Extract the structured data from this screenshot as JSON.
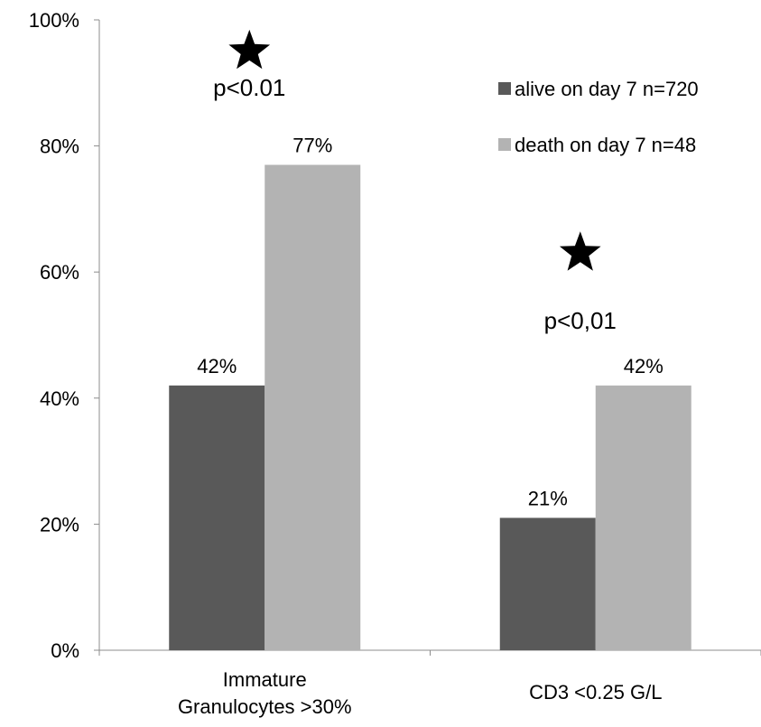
{
  "chart_data": {
    "type": "bar",
    "title": "",
    "xlabel": "",
    "ylabel": "",
    "ylim": [
      0,
      100
    ],
    "y_ticks": [
      0,
      20,
      40,
      60,
      80,
      100
    ],
    "y_tick_labels": [
      "0%",
      "20%",
      "40%",
      "60%",
      "80%",
      "100%"
    ],
    "grid": false,
    "legend_position": "top-right",
    "categories": [
      [
        "Immature",
        "Granulocytes >30%"
      ],
      [
        "CD3 <0.25 G/L"
      ]
    ],
    "series": [
      {
        "name": "alive on day 7 n=720",
        "color": "#595959",
        "values": [
          42,
          21
        ],
        "labels": [
          "42%",
          "21%"
        ]
      },
      {
        "name": "death on day 7 n=48",
        "color": "#b3b3b3",
        "values": [
          77,
          42
        ],
        "labels": [
          "77%",
          "42%"
        ]
      }
    ],
    "annotations": [
      {
        "category_index": 0,
        "star_value": 95,
        "text": "p<0.01",
        "text_value": 88
      },
      {
        "category_index": 1,
        "star_value": 63,
        "text": "p<0,01",
        "text_value": 51
      }
    ]
  }
}
